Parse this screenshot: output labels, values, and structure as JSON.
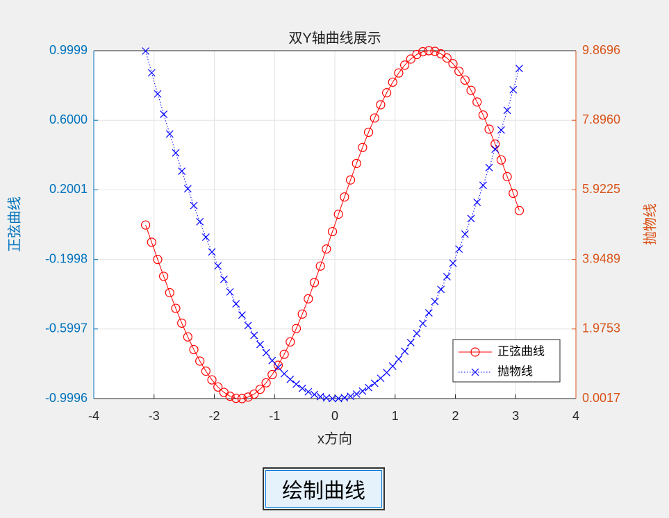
{
  "chart_data": {
    "type": "line",
    "title": "双Y轴曲线展示",
    "xlabel": "x方向",
    "ylabel": "正弦曲线",
    "y2label": "抛物线",
    "x": [
      -3.14,
      -3.04,
      -2.94,
      -2.84,
      -2.74,
      -2.64,
      -2.54,
      -2.44,
      -2.34,
      -2.24,
      -2.14,
      -2.04,
      -1.94,
      -1.84,
      -1.74,
      -1.64,
      -1.54,
      -1.44,
      -1.34,
      -1.24,
      -1.14,
      -1.04,
      -0.94,
      -0.84,
      -0.74,
      -0.64,
      -0.54,
      -0.44,
      -0.34,
      -0.24,
      -0.14,
      -0.04,
      0.06,
      0.16,
      0.26,
      0.36,
      0.46,
      0.56,
      0.66,
      0.76,
      0.86,
      0.96,
      1.06,
      1.16,
      1.26,
      1.36,
      1.46,
      1.56,
      1.66,
      1.76,
      1.86,
      1.96,
      2.06,
      2.16,
      2.26,
      2.36,
      2.46,
      2.56,
      2.66,
      2.76,
      2.86,
      2.96,
      3.06
    ],
    "series": [
      {
        "name": "正弦曲线",
        "color": "#ff0000",
        "marker": "o",
        "line": "solid",
        "values": [
          -0.002,
          -0.101,
          -0.2,
          -0.297,
          -0.391,
          -0.481,
          -0.566,
          -0.645,
          -0.718,
          -0.784,
          -0.842,
          -0.892,
          -0.933,
          -0.964,
          -0.986,
          -0.998,
          -0.9995,
          -0.991,
          -0.974,
          -0.946,
          -0.909,
          -0.862,
          -0.808,
          -0.745,
          -0.674,
          -0.597,
          -0.514,
          -0.426,
          -0.333,
          -0.238,
          -0.14,
          -0.04,
          0.06,
          0.159,
          0.257,
          0.352,
          0.444,
          0.531,
          0.613,
          0.689,
          0.758,
          0.819,
          0.872,
          0.917,
          0.952,
          0.978,
          0.994,
          1.0,
          0.996,
          0.982,
          0.958,
          0.925,
          0.882,
          0.831,
          0.772,
          0.705,
          0.63,
          0.549,
          0.463,
          0.372,
          0.276,
          0.18,
          0.081
        ]
      },
      {
        "name": "抛物线",
        "color": "#0000ff",
        "marker": "x",
        "line": "dotted",
        "axis": "y2",
        "values": [
          9.8596,
          9.2416,
          8.6436,
          8.0656,
          7.5076,
          6.9696,
          6.4516,
          5.9536,
          5.4756,
          5.0176,
          4.5796,
          4.1616,
          3.7636,
          3.3856,
          3.0276,
          2.6896,
          2.3716,
          2.0736,
          1.7956,
          1.5376,
          1.2996,
          1.0816,
          0.8836,
          0.7056,
          0.5476,
          0.4096,
          0.2916,
          0.1936,
          0.1156,
          0.0576,
          0.0196,
          0.0016,
          0.0036,
          0.0256,
          0.0676,
          0.1296,
          0.2116,
          0.3136,
          0.4356,
          0.5776,
          0.7396,
          0.9216,
          1.1236,
          1.3456,
          1.5876,
          1.8496,
          2.1316,
          2.4336,
          2.7556,
          3.0976,
          3.4596,
          3.8416,
          4.2436,
          4.6656,
          5.1076,
          5.5696,
          6.0516,
          6.5536,
          7.0756,
          7.6176,
          8.1796,
          8.7616,
          9.3636
        ]
      }
    ],
    "xlim": [
      -4,
      4
    ],
    "xticks": [
      -4,
      -3,
      -2,
      -1,
      0,
      1,
      2,
      3,
      4
    ],
    "ylim": [
      -0.9996,
      0.9999
    ],
    "yticks": [
      -0.9996,
      -0.5997,
      -0.1998,
      0.2001,
      {
        "value": 0.6,
        "label": "0.6000"
      },
      0.9999
    ],
    "y2lim": [
      0.0017,
      9.8696
    ],
    "y2ticks": [
      0.0017,
      1.9753,
      3.9489,
      5.9225,
      {
        "value": 7.896,
        "label": "7.8960"
      },
      9.8696
    ],
    "y_color": "#0072bd",
    "y2_color": "#d95319",
    "grid": true,
    "legend": "lower right"
  },
  "button": {
    "label": "绘制曲线"
  }
}
